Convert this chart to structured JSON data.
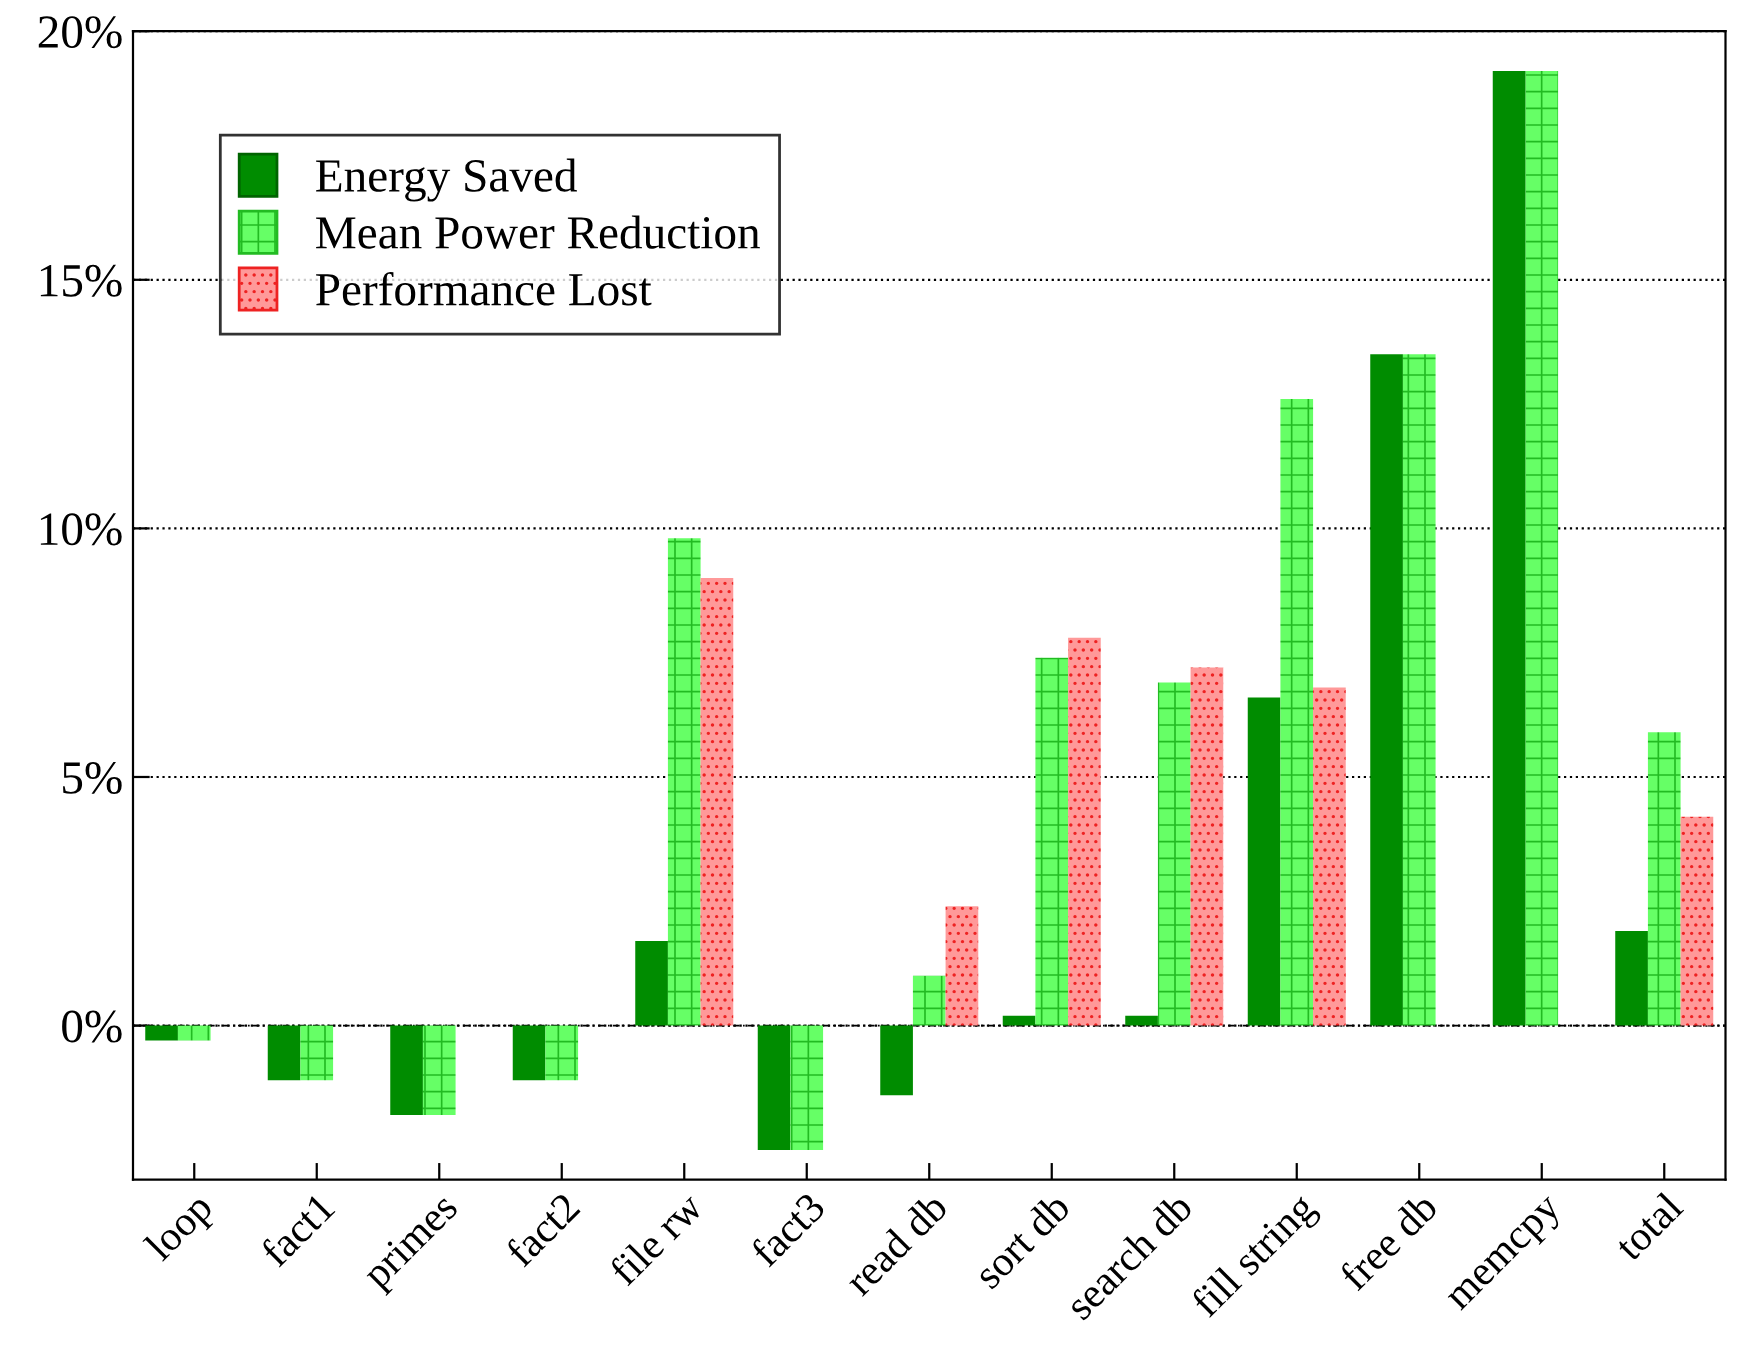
{
  "chart_data": {
    "type": "bar",
    "categories": [
      "loop",
      "fact1",
      "primes",
      "fact2",
      "file rw",
      "fact3",
      "read db",
      "sort db",
      "search db",
      "fill string",
      "free db",
      "memcpy",
      "total"
    ],
    "series": [
      {
        "name": "Energy Saved",
        "color": "#008c00",
        "values": [
          -0.3,
          -1.1,
          -1.8,
          -1.1,
          1.7,
          -2.5,
          -1.4,
          0.2,
          0.2,
          6.6,
          13.5,
          19.2,
          1.9
        ]
      },
      {
        "name": "Mean Power Reduction",
        "color": "#66ff66",
        "values": [
          -0.3,
          -1.1,
          -1.8,
          -1.1,
          9.8,
          -2.5,
          1.0,
          7.4,
          6.9,
          12.6,
          13.5,
          19.2,
          5.9
        ]
      },
      {
        "name": "Performance Lost",
        "color": "#ff9999",
        "values": [
          0,
          0,
          0,
          0,
          9.0,
          0,
          2.4,
          7.8,
          7.2,
          6.8,
          0,
          0,
          4.2
        ]
      }
    ],
    "ylim": [
      -3.1,
      20
    ],
    "yticks": [
      {
        "value": 0,
        "label": "0%"
      },
      {
        "value": 5,
        "label": "5%"
      },
      {
        "value": 10,
        "label": "10%"
      },
      {
        "value": 15,
        "label": "15%"
      },
      {
        "value": 20,
        "label": "20%"
      }
    ],
    "ref_lines": [
      {
        "axis": "y",
        "value": 0,
        "color": "#000000",
        "line_style": "dashdot"
      }
    ],
    "grid": "y",
    "legend": "top left"
  }
}
